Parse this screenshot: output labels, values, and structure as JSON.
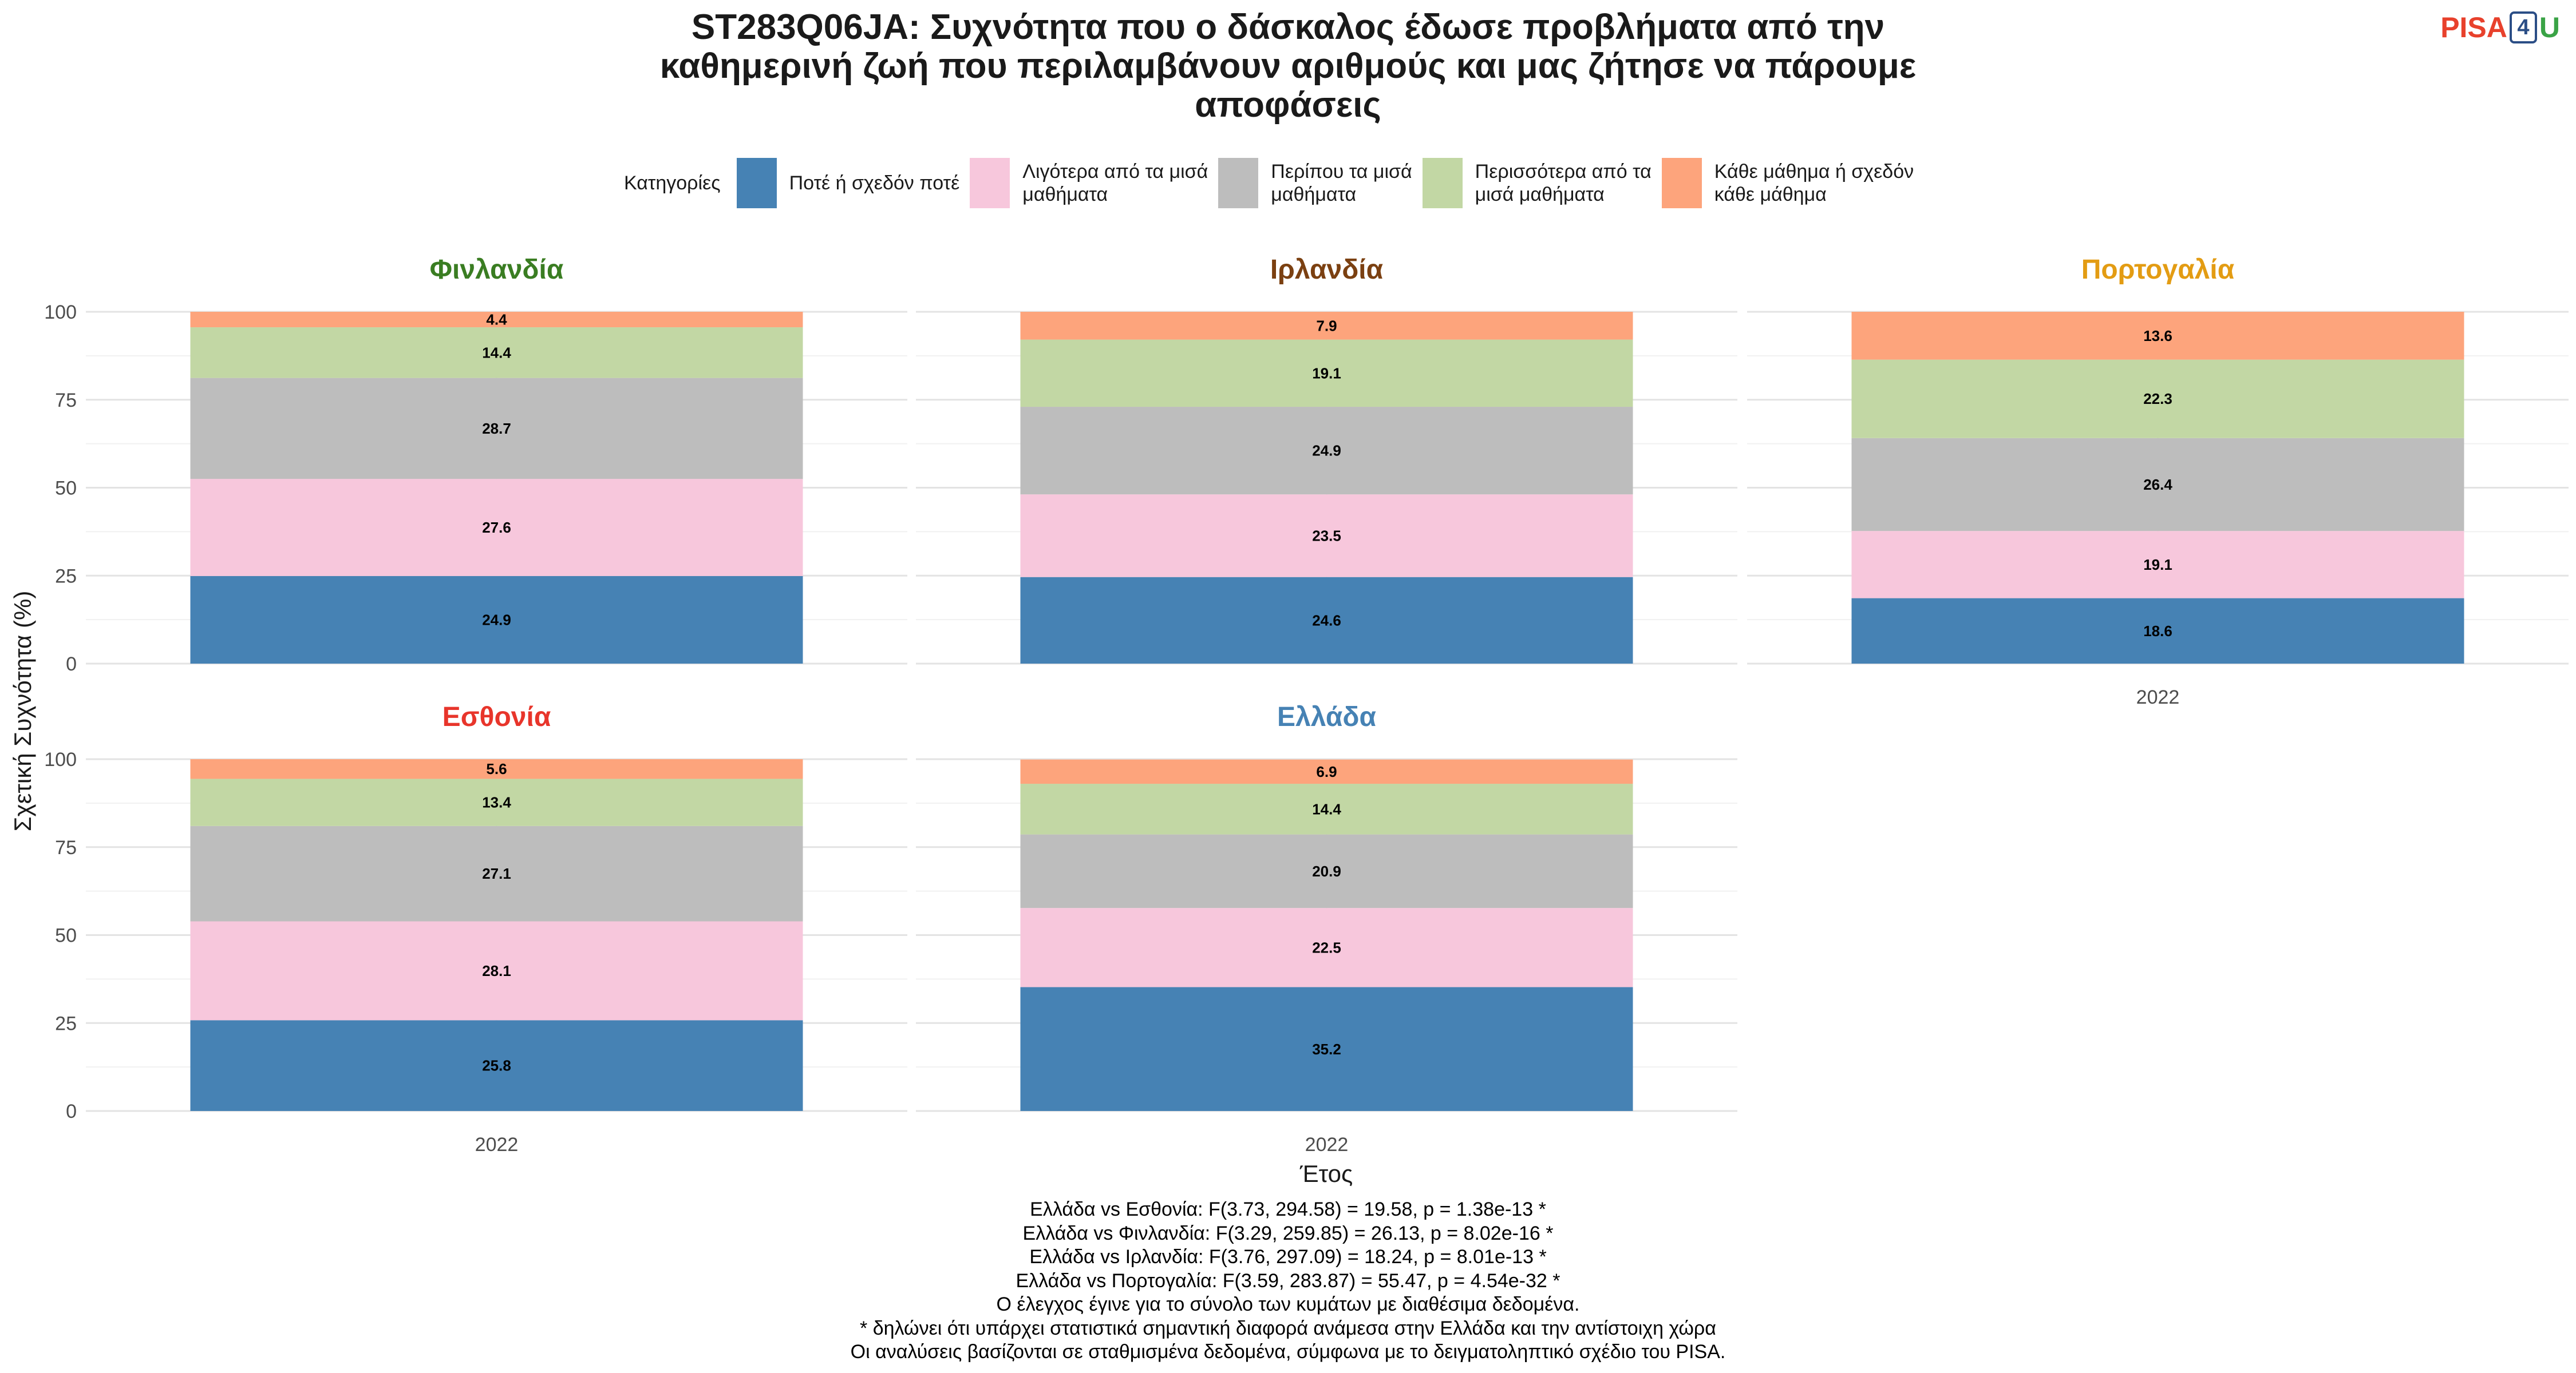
{
  "chart_data": {
    "type": "bar",
    "title": "ST283Q06JA: Συχνότητα που ο δάσκαλος έδωσε προβλήματα από την καθημερινή ζωή που περιλαμβάνουν αριθμούς και μας ζήτησε να πάρουμε αποφάσεις",
    "title_lines": [
      "ST283Q06JA: Συχνότητα που ο δάσκαλος έδωσε προβλήματα από την",
      "καθημερινή ζωή που περιλαμβάνουν αριθμούς και μας ζήτησε να πάρουμε",
      "αποφάσεις"
    ],
    "xlabel": "Έτος",
    "ylabel": "Σχετική Συχνότητα (%)",
    "ylim": [
      0,
      100
    ],
    "y_ticks": [
      "0",
      "25",
      "50",
      "75",
      "100"
    ],
    "stacked": true,
    "grid": true,
    "legend_position": "top",
    "legend": {
      "title": "Κατηγορίες",
      "items": [
        {
          "lines": [
            "Ποτέ ή σχεδόν ποτέ"
          ],
          "color": "#4682b4"
        },
        {
          "lines": [
            "Λιγότερα από τα μισά",
            "μαθήματα"
          ],
          "color": "#f7c7dc"
        },
        {
          "lines": [
            "Περίπου τα μισά",
            "μαθήματα"
          ],
          "color": "#bdbdbd"
        },
        {
          "lines": [
            "Περισσότερα από τα",
            "μισά μαθήματα"
          ],
          "color": "#c2d7a4"
        },
        {
          "lines": [
            "Κάθε μάθημα ή σχεδόν",
            "κάθε μάθημα"
          ],
          "color": "#fda47c"
        }
      ]
    },
    "series_colors": [
      "#4682b4",
      "#f7c7dc",
      "#bdbdbd",
      "#c2d7a4",
      "#fda47c"
    ],
    "panels": [
      {
        "name": "Φινλανδία",
        "title_color": "#3a7d22",
        "category": "2022",
        "show_x_label": false,
        "values": [
          24.9,
          27.6,
          28.7,
          14.4,
          4.4
        ]
      },
      {
        "name": "Ιρλανδία",
        "title_color": "#7b4011",
        "category": "2022",
        "show_x_label": false,
        "values": [
          24.6,
          23.5,
          24.9,
          19.1,
          7.9
        ]
      },
      {
        "name": "Πορτογαλία",
        "title_color": "#e39c13",
        "category": "2022",
        "show_x_label": true,
        "values": [
          18.6,
          19.1,
          26.4,
          22.3,
          13.6
        ]
      },
      {
        "name": "Εσθονία",
        "title_color": "#e8352b",
        "category": "2022",
        "show_x_label": true,
        "values": [
          25.8,
          28.1,
          27.1,
          13.4,
          5.6
        ]
      },
      {
        "name": "Ελλάδα",
        "title_color": "#4682b4",
        "category": "2022",
        "show_x_label": true,
        "values": [
          35.2,
          22.5,
          20.9,
          14.4,
          6.9
        ]
      }
    ]
  },
  "logo": {
    "pisa": "PISA",
    "four": "4",
    "u": "U"
  },
  "footnotes": [
    "Ελλάδα vs Εσθονία: F(3.73, 294.58) = 19.58, p = 1.38e-13 *",
    "Ελλάδα vs Φινλανδία: F(3.29, 259.85) = 26.13, p = 8.02e-16 *",
    "Ελλάδα vs Ιρλανδία: F(3.76, 297.09) = 18.24, p = 8.01e-13 *",
    "Ελλάδα vs Πορτογαλία: F(3.59, 283.87) = 55.47, p = 4.54e-32 *",
    "Ο έλεγχος έγινε για το σύνολο των κυμάτων με διαθέσιμα δεδομένα.",
    "* δηλώνει ότι υπάρχει στατιστικά σημαντική διαφορά ανάμεσα στην Ελλάδα και την αντίστοιχη χώρα",
    "Οι αναλύσεις βασίζονται σε σταθμισμένα δεδομένα, σύμφωνα με το δειγματοληπτικό σχέδιο του PISA."
  ]
}
